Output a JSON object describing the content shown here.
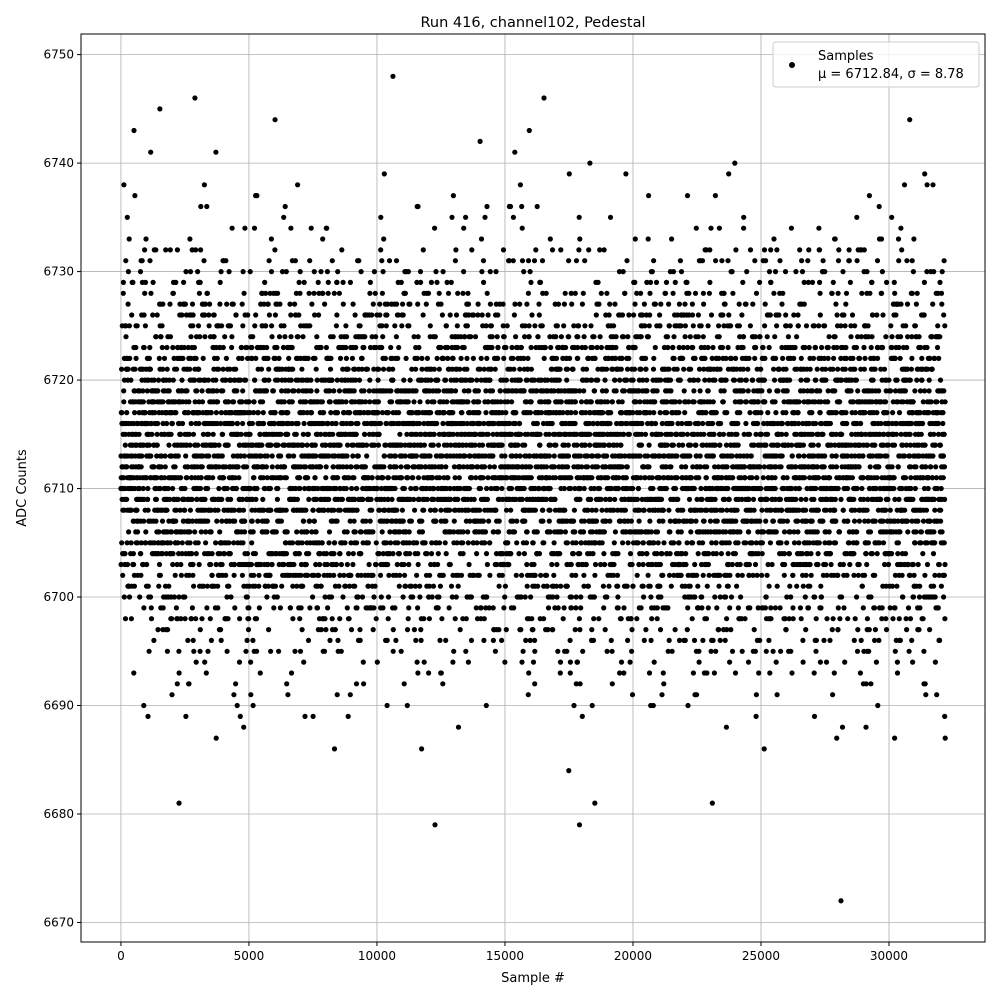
{
  "chart_data": {
    "type": "scatter",
    "title": "Run 416, channel102, Pedestal",
    "xlabel": "Sample #",
    "ylabel": "ADC Counts",
    "xlim": [
      -1560,
      33750
    ],
    "ylim": [
      6668.2,
      6751.9
    ],
    "xticks": [
      0,
      5000,
      10000,
      15000,
      20000,
      25000,
      30000
    ],
    "yticks": [
      6670,
      6680,
      6690,
      6700,
      6710,
      6720,
      6730,
      6740,
      6750
    ],
    "grid": true,
    "legend_position": "top-right",
    "marker_color": "#000000",
    "grid_color": "#b0b0b0",
    "series": [
      {
        "name": "Samples",
        "legend_stats": "μ = 6712.84, σ = 8.78",
        "n_samples": 32200,
        "mean": 6712.84,
        "sigma": 8.78,
        "value_step": 1,
        "notable_points": [
          {
            "x": 10625,
            "y": 6748
          },
          {
            "x": 2890,
            "y": 6746
          },
          {
            "x": 1520,
            "y": 6745
          },
          {
            "x": 6020,
            "y": 6744
          },
          {
            "x": 28125,
            "y": 6672
          },
          {
            "x": 2270,
            "y": 6681
          },
          {
            "x": 18510,
            "y": 6681
          },
          {
            "x": 23100,
            "y": 6681
          }
        ]
      }
    ]
  }
}
